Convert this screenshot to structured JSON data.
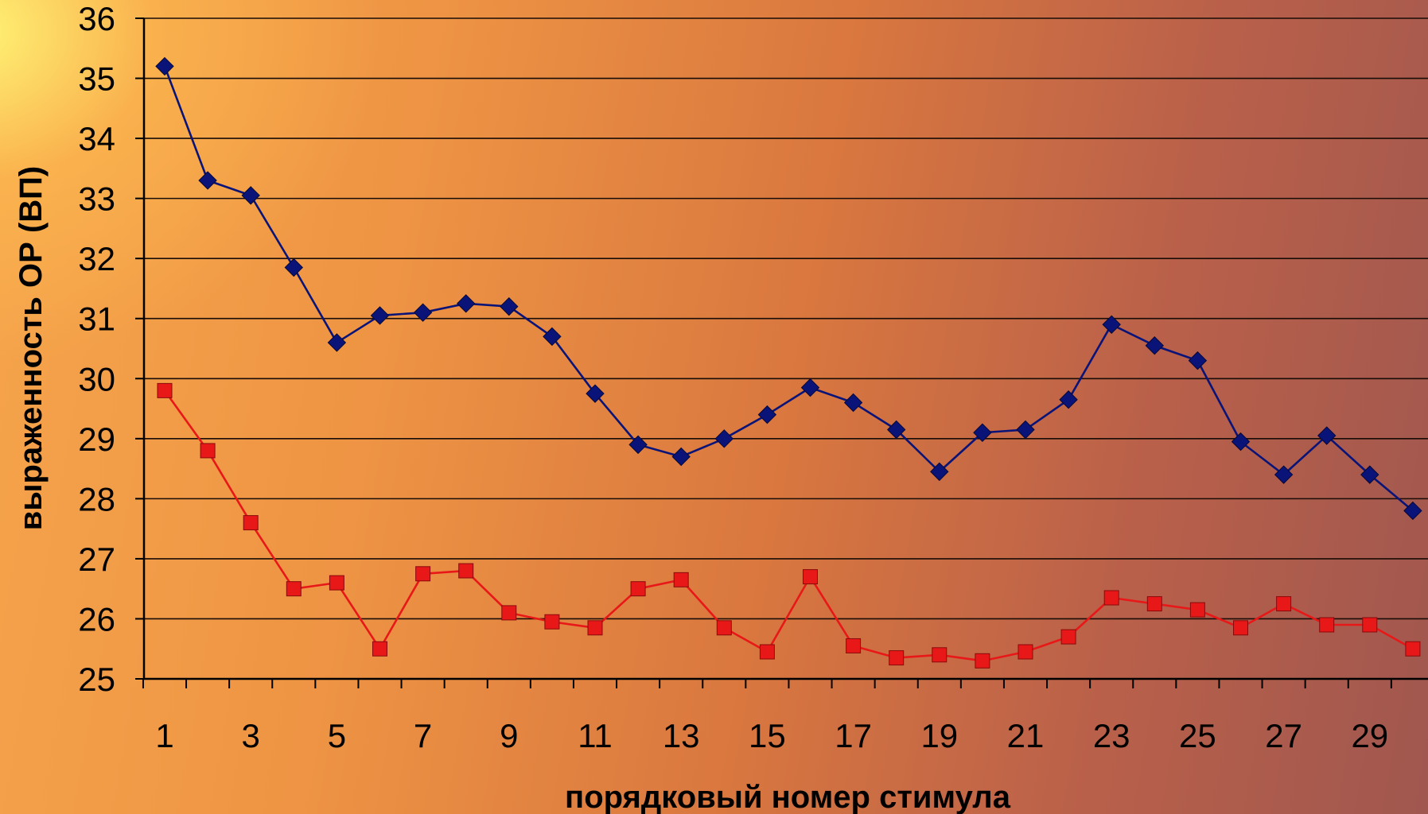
{
  "chart_data": {
    "type": "line",
    "xlabel": "порядковый номер стимула",
    "ylabel": "выраженность ОР (ВП)",
    "ylim": [
      25,
      36
    ],
    "y_ticks": [
      25,
      26,
      27,
      28,
      29,
      30,
      31,
      32,
      33,
      34,
      35,
      36
    ],
    "x_ticks": [
      1,
      3,
      5,
      7,
      9,
      11,
      13,
      15,
      17,
      19,
      21,
      23,
      25,
      27,
      29
    ],
    "xlim": [
      1,
      30
    ],
    "grid": true,
    "legend": "none",
    "x": [
      1,
      2,
      3,
      4,
      5,
      6,
      7,
      8,
      9,
      10,
      11,
      12,
      13,
      14,
      15,
      16,
      17,
      18,
      19,
      20,
      21,
      22,
      23,
      24,
      25,
      26,
      27,
      28,
      29,
      30
    ],
    "series": [
      {
        "color": "#0a1478",
        "marker": "diamond",
        "values": [
          35.2,
          33.3,
          33.05,
          31.85,
          30.6,
          31.05,
          31.1,
          31.25,
          31.2,
          30.7,
          29.75,
          28.9,
          28.7,
          29.0,
          29.4,
          29.85,
          29.6,
          29.15,
          28.45,
          29.1,
          29.15,
          29.65,
          30.9,
          30.55,
          30.3,
          28.95,
          28.4,
          29.05,
          28.4,
          27.8
        ]
      },
      {
        "color": "#e81818",
        "marker": "square",
        "values": [
          29.8,
          28.8,
          27.6,
          26.5,
          26.6,
          25.5,
          26.75,
          26.8,
          26.1,
          25.95,
          25.85,
          26.5,
          26.65,
          25.85,
          25.45,
          26.7,
          25.55,
          25.35,
          25.4,
          25.3,
          25.45,
          25.7,
          26.35,
          26.25,
          26.15,
          25.85,
          26.25,
          25.9,
          25.9,
          25.5
        ]
      }
    ]
  }
}
